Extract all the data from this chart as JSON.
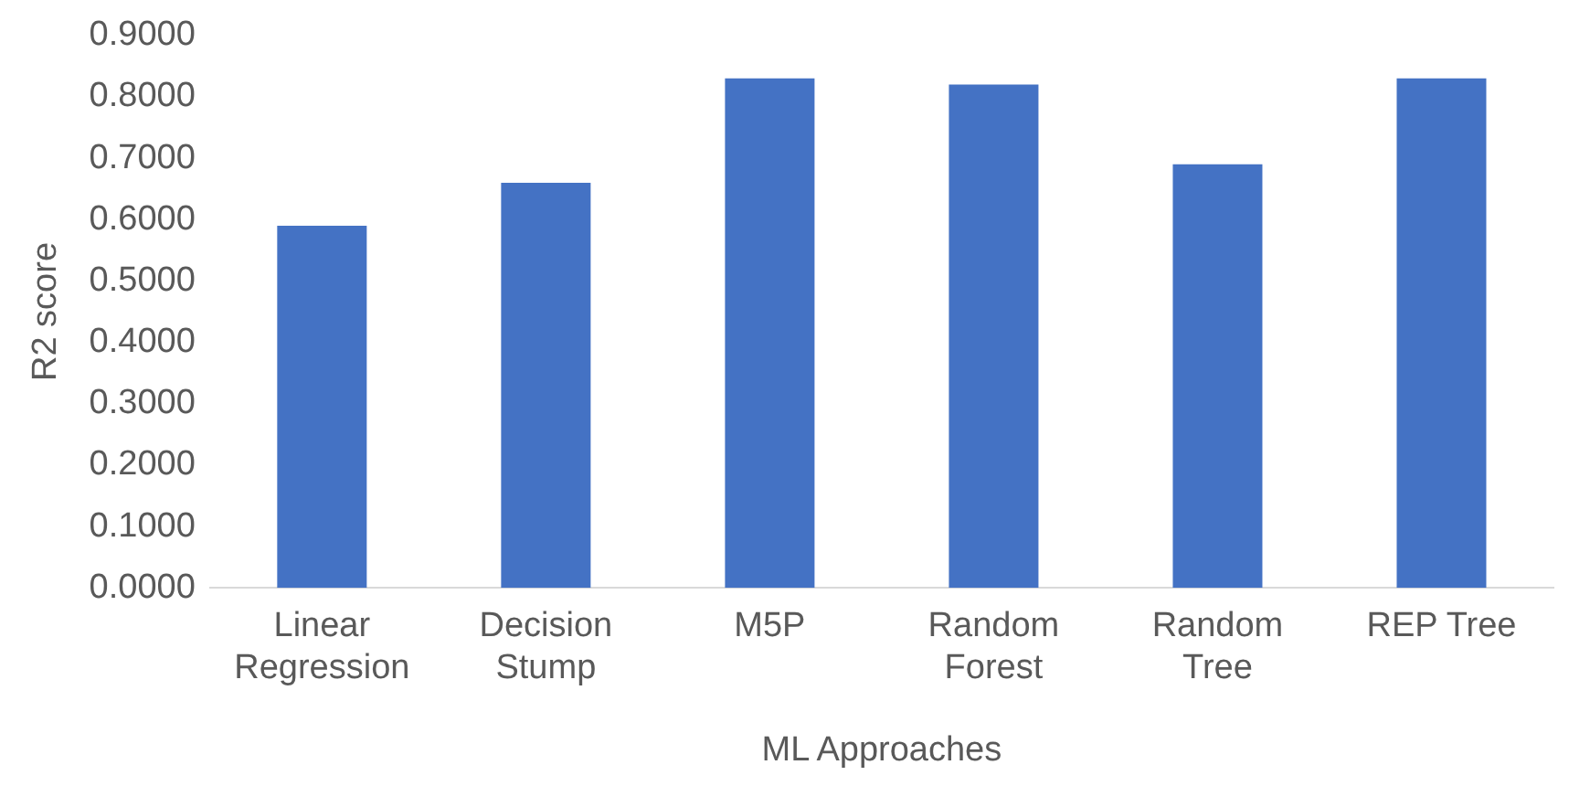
{
  "chart_data": {
    "type": "bar",
    "xlabel": "ML Approaches",
    "ylabel": "R2 score",
    "categories": [
      "Linear Regression",
      "Decision Stump",
      "M5P",
      "Random Forest",
      "Random Tree",
      "REP Tree"
    ],
    "values": [
      0.59,
      0.66,
      0.83,
      0.82,
      0.69,
      0.83
    ],
    "color": "#4472c4",
    "ylim": [
      0,
      0.9
    ],
    "yticks": [
      {
        "value": 0,
        "label": "0.0000"
      },
      {
        "value": 0.1,
        "label": "0.1000"
      },
      {
        "value": 0.2,
        "label": "0.2000"
      },
      {
        "value": 0.3,
        "label": "0.3000"
      },
      {
        "value": 0.4,
        "label": "0.4000"
      },
      {
        "value": 0.5,
        "label": "0.5000"
      },
      {
        "value": 0.6,
        "label": "0.6000"
      },
      {
        "value": 0.7,
        "label": "0.7000"
      },
      {
        "value": 0.8,
        "label": "0.8000"
      },
      {
        "value": 0.9,
        "label": "0.9000"
      }
    ],
    "grid": false,
    "legend": false
  }
}
